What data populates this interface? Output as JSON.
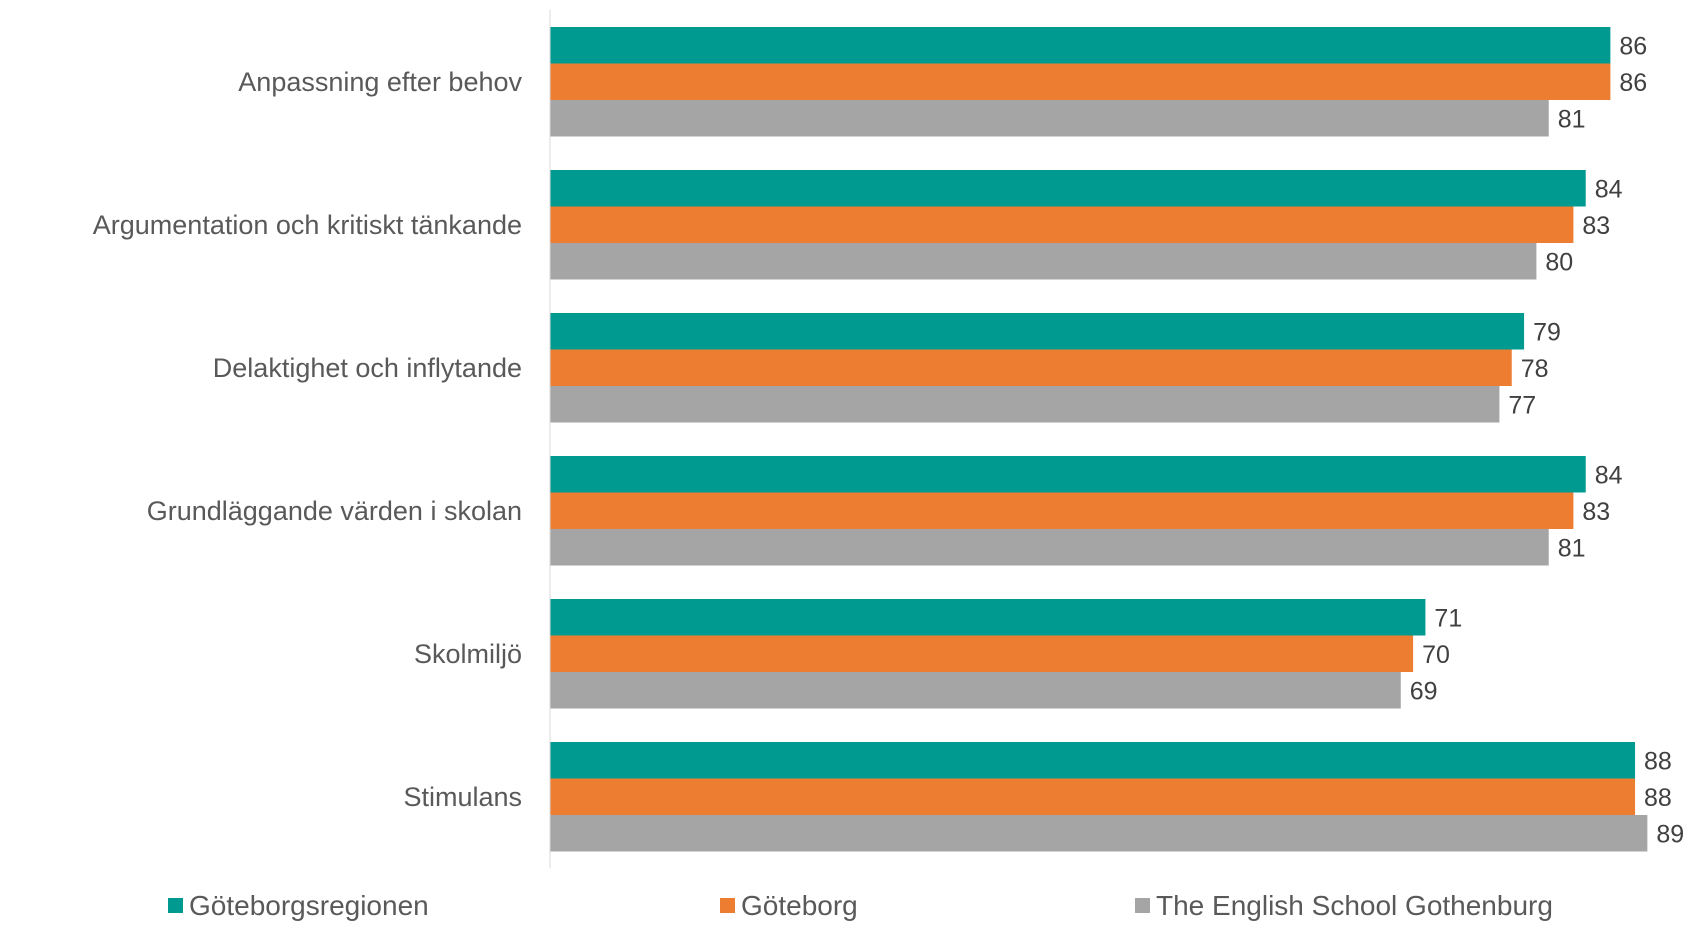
{
  "chart_data": {
    "type": "bar",
    "orientation": "horizontal",
    "categories": [
      "Anpassning efter behov",
      "Argumentation och kritiskt tänkande",
      "Delaktighet och inflytande",
      "Grundläggande värden i skolan",
      "Skolmiljö",
      "Stimulans"
    ],
    "series": [
      {
        "name": "Göteborgsregionen",
        "color": "#009A91",
        "values": [
          86,
          84,
          79,
          84,
          71,
          88
        ]
      },
      {
        "name": "Göteborg",
        "color": "#ED7D31",
        "values": [
          86,
          83,
          78,
          83,
          70,
          88
        ]
      },
      {
        "name": "The English School Gothenburg",
        "color": "#A5A5A5",
        "values": [
          81,
          80,
          77,
          81,
          69,
          89
        ]
      }
    ],
    "xlim": [
      0,
      100
    ],
    "grid": false,
    "data_labels": true,
    "legend": "bottom"
  }
}
